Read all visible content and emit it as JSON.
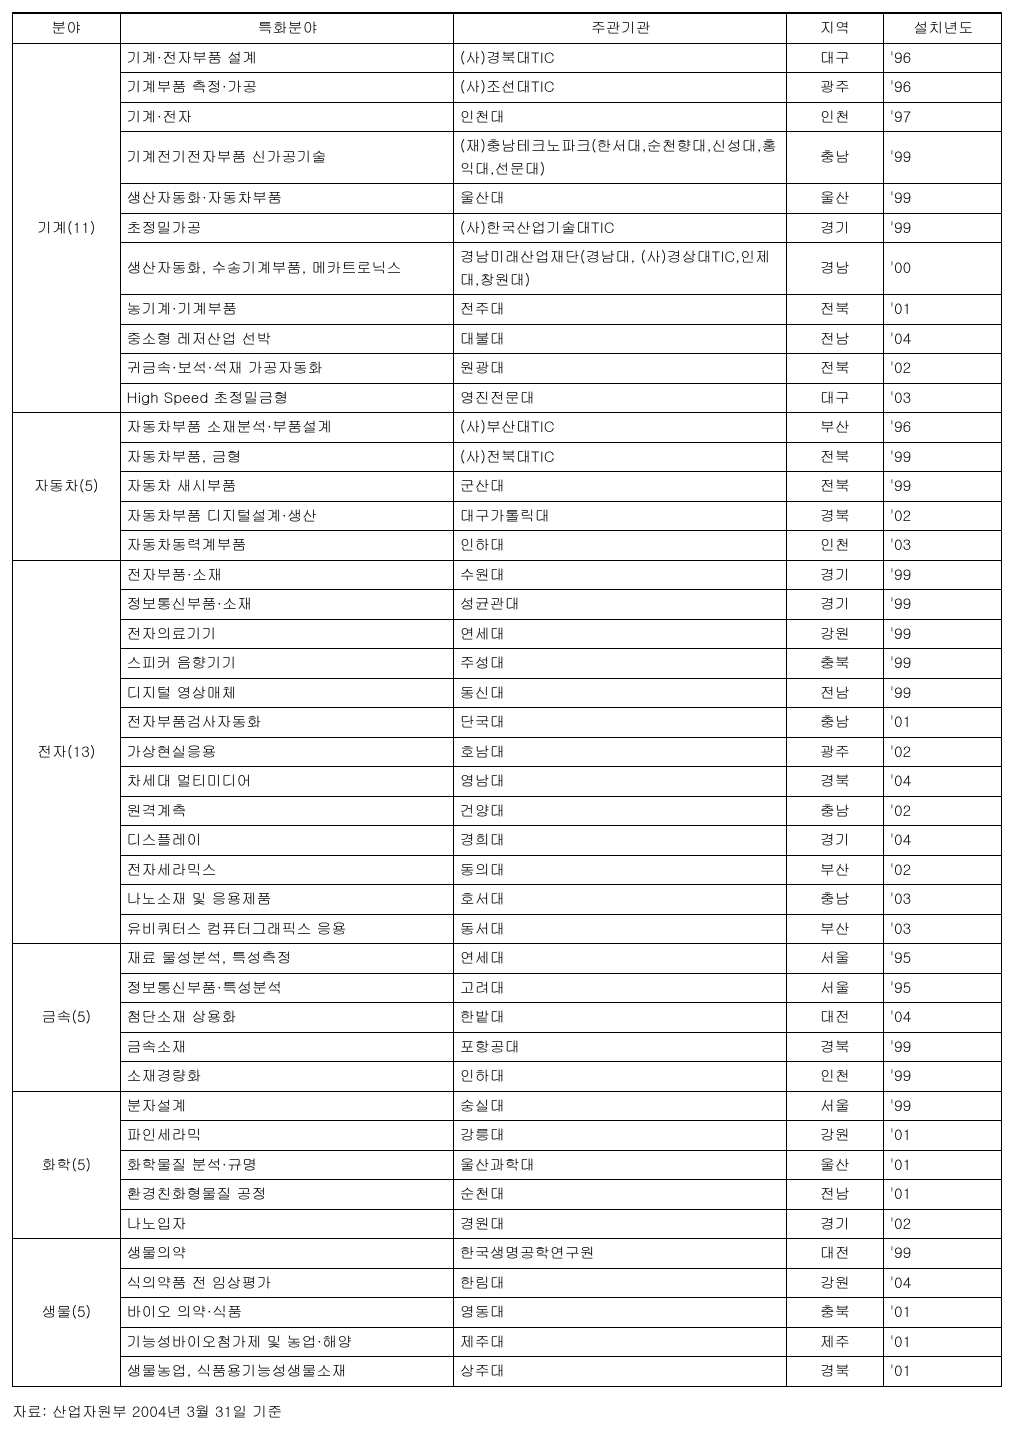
{
  "table": {
    "columns": [
      "분야",
      "특화분야",
      "주관기관",
      "지역",
      "설치년도"
    ],
    "groups": [
      {
        "field": "기계(11)",
        "rows": [
          {
            "spec": "기계·전자부품 설계",
            "org": "(사)경북대TIC",
            "region": "대구",
            "year": "'96"
          },
          {
            "spec": "기계부품 측정·가공",
            "org": "(사)조선대TIC",
            "region": "광주",
            "year": "'96"
          },
          {
            "spec": "기계·전자",
            "org": "인천대",
            "region": "인천",
            "year": "'97"
          },
          {
            "spec": "기계전기전자부품 신가공기술",
            "org": "(재)충남테크노파크(한서대,순천향대,신성대,홍익대,선문대)",
            "region": "충남",
            "year": "'99"
          },
          {
            "spec": "생산자동화·자동차부품",
            "org": "울산대",
            "region": "울산",
            "year": "'99"
          },
          {
            "spec": "초정밀가공",
            "org": "(사)한국산업기술대TIC",
            "region": "경기",
            "year": "'99"
          },
          {
            "spec": "생산자동화, 수송기계부품, 메카트로닉스",
            "org": "경남미래산업재단(경남대, (사)경상대TIC,인제대,창원대)",
            "region": "경남",
            "year": "'00"
          },
          {
            "spec": "농기계·기계부품",
            "org": "전주대",
            "region": "전북",
            "year": "'01"
          },
          {
            "spec": "중소형 레저산업 선박",
            "org": "대불대",
            "region": "전남",
            "year": "'04"
          },
          {
            "spec": "귀금속·보석·석재 가공자동화",
            "org": "원광대",
            "region": "전북",
            "year": "'02"
          },
          {
            "spec": "High Speed 초정밀금형",
            "org": "영진전문대",
            "region": "대구",
            "year": "'03"
          }
        ]
      },
      {
        "field": "자동차(5)",
        "rows": [
          {
            "spec": "자동차부품 소재분석·부품설계",
            "org": "(사)부산대TIC",
            "region": "부산",
            "year": "'96"
          },
          {
            "spec": "자동차부품, 금형",
            "org": "(사)전북대TIC",
            "region": "전북",
            "year": "'99"
          },
          {
            "spec": "자동차 새시부품",
            "org": "군산대",
            "region": "전북",
            "year": "'99"
          },
          {
            "spec": "자동차부품 디지털설계·생산",
            "org": "대구가톨릭대",
            "region": "경북",
            "year": "'02"
          },
          {
            "spec": "자동차동력계부품",
            "org": "인하대",
            "region": "인천",
            "year": "'03"
          }
        ]
      },
      {
        "field": "전자(13)",
        "rows": [
          {
            "spec": "전자부품·소재",
            "org": "수원대",
            "region": "경기",
            "year": "'99"
          },
          {
            "spec": "정보통신부품·소재",
            "org": "성균관대",
            "region": "경기",
            "year": "'99"
          },
          {
            "spec": "전자의료기기",
            "org": "연세대",
            "region": "강원",
            "year": "'99"
          },
          {
            "spec": "스피커 음향기기",
            "org": "주성대",
            "region": "충북",
            "year": "'99"
          },
          {
            "spec": "디지털 영상매체",
            "org": "동신대",
            "region": "전남",
            "year": "'99"
          },
          {
            "spec": "전자부품검사자동화",
            "org": "단국대",
            "region": "충남",
            "year": "'01"
          },
          {
            "spec": "가상현실응용",
            "org": "호남대",
            "region": "광주",
            "year": "'02"
          },
          {
            "spec": "차세대 멀티미디어",
            "org": "영남대",
            "region": "경북",
            "year": "'04"
          },
          {
            "spec": "원격계측",
            "org": "건양대",
            "region": "충남",
            "year": "'02"
          },
          {
            "spec": "디스플레이",
            "org": "경희대",
            "region": "경기",
            "year": "'04"
          },
          {
            "spec": "전자세라믹스",
            "org": "동의대",
            "region": "부산",
            "year": "'02"
          },
          {
            "spec": "나노소재 및 응용제품",
            "org": "호서대",
            "region": "충남",
            "year": "'03"
          },
          {
            "spec": "유비쿼터스 컴퓨터그래픽스 응용",
            "org": "동서대",
            "region": "부산",
            "year": "'03"
          }
        ]
      },
      {
        "field": "금속(5)",
        "rows": [
          {
            "spec": "재료 물성분석, 특성측정",
            "org": "연세대",
            "region": "서울",
            "year": "'95"
          },
          {
            "spec": "정보통신부품·특성분석",
            "org": "고려대",
            "region": "서울",
            "year": "'95"
          },
          {
            "spec": "첨단소재 상용화",
            "org": "한밭대",
            "region": "대전",
            "year": "'04"
          },
          {
            "spec": "금속소재",
            "org": "포항공대",
            "region": "경북",
            "year": "'99"
          },
          {
            "spec": "소재경량화",
            "org": "인하대",
            "region": "인천",
            "year": "'99"
          }
        ]
      },
      {
        "field": "화학(5)",
        "rows": [
          {
            "spec": "분자설계",
            "org": "숭실대",
            "region": "서울",
            "year": "'99"
          },
          {
            "spec": "파인세라믹",
            "org": "강릉대",
            "region": "강원",
            "year": "'01"
          },
          {
            "spec": "화학물질 분석·규명",
            "org": "울산과학대",
            "region": "울산",
            "year": "'01"
          },
          {
            "spec": "환경친화형물질 공정",
            "org": "순천대",
            "region": "전남",
            "year": "'01"
          },
          {
            "spec": "나노입자",
            "org": "경원대",
            "region": "경기",
            "year": "'02"
          }
        ]
      },
      {
        "field": "생물(5)",
        "rows": [
          {
            "spec": "생물의약",
            "org": "한국생명공학연구원",
            "region": "대전",
            "year": "'99"
          },
          {
            "spec": "식의약품 전 임상평가",
            "org": "한림대",
            "region": "강원",
            "year": "'04"
          },
          {
            "spec": "바이오 의약·식품",
            "org": "영동대",
            "region": "충북",
            "year": "'01"
          },
          {
            "spec": "기능성바이오첨가제 및 농업·해양",
            "org": "제주대",
            "region": "제주",
            "year": "'01"
          },
          {
            "spec": "생물농업, 식품용기능성생물소재",
            "org": "상주대",
            "region": "경북",
            "year": "'01"
          }
        ]
      }
    ],
    "footnote": "자료: 산업자원부 2004년 3월 31일 기준"
  }
}
